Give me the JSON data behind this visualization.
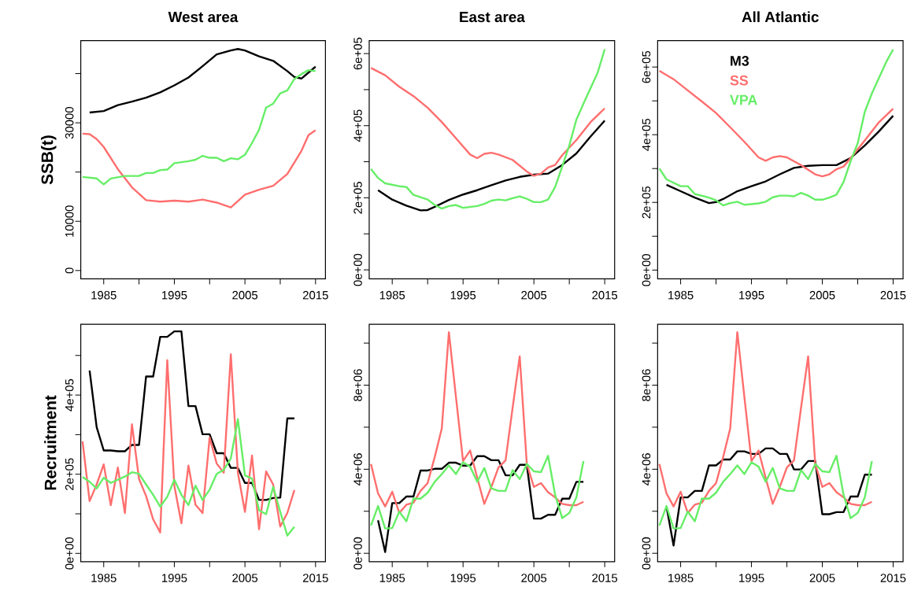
{
  "chart_data": [
    {
      "type": "line",
      "title": "West area",
      "ylabel": "SSB(t)",
      "xlim": [
        1981.75,
        2016.4
      ],
      "ylim": [
        -1700,
        46700
      ],
      "xticks": [
        1985,
        {
          "value": 1990,
          "label": null
        },
        1995,
        {
          "value": 2000,
          "label": null
        },
        2005,
        {
          "value": 2010,
          "label": null
        },
        2015
      ],
      "yticks": [
        0,
        10000,
        {
          "value": 20000,
          "label": null
        },
        30000,
        {
          "value": 40000,
          "label": null
        }
      ],
      "series": [
        {
          "color": "#000000",
          "x": [
            1983,
            1985,
            1987,
            1989,
            1991,
            1993,
            1995,
            1997,
            1999,
            2001,
            2003,
            2004,
            2005,
            2007,
            2009,
            2011,
            2012,
            2013,
            2014,
            2015
          ],
          "values": [
            32100,
            32400,
            33600,
            34300,
            35100,
            36200,
            37600,
            39200,
            41500,
            43900,
            44700,
            45000,
            44700,
            43500,
            42600,
            40500,
            39300,
            39000,
            40200,
            41400
          ]
        },
        {
          "color": "#ff6e6e",
          "x": [
            1982,
            1983,
            1984,
            1985,
            1987,
            1989,
            1991,
            1993,
            1995,
            1997,
            1999,
            2001,
            2003,
            2005,
            2007,
            2009,
            2011,
            2013,
            2014,
            2015
          ],
          "values": [
            27800,
            27700,
            26700,
            25100,
            20600,
            16900,
            14300,
            14000,
            14200,
            14000,
            14400,
            13800,
            12800,
            15400,
            16400,
            17200,
            19600,
            24300,
            27500,
            28500
          ]
        },
        {
          "color": "#66ee66",
          "x": [
            1982,
            1984,
            1985,
            1986,
            1988,
            1990,
            1991,
            1992,
            1993,
            1994,
            1995,
            1997,
            1998,
            1999,
            2000,
            2001,
            2002,
            2003,
            2004,
            2005,
            2006,
            2007,
            2008,
            2009,
            2010,
            2011,
            2012,
            2013,
            2014,
            2015
          ],
          "values": [
            19000,
            18700,
            17500,
            18700,
            19200,
            19200,
            19800,
            19800,
            20400,
            20500,
            21800,
            22200,
            22500,
            23300,
            22900,
            22900,
            22200,
            22800,
            22600,
            23500,
            25900,
            28600,
            33100,
            33900,
            36000,
            36600,
            38900,
            39900,
            40700,
            40500
          ]
        }
      ]
    },
    {
      "type": "line",
      "title": "East area",
      "xlim": [
        1981.75,
        2016.4
      ],
      "ylim": [
        -25000,
        636000
      ],
      "xticks": [
        1985,
        {
          "value": 1990,
          "label": null
        },
        1995,
        {
          "value": 2000,
          "label": null
        },
        2005,
        {
          "value": 2010,
          "label": null
        },
        2015
      ],
      "yticks": [
        {
          "value": 0,
          "label": "0e+00"
        },
        {
          "value": 100000,
          "label": null
        },
        {
          "value": 200000,
          "label": "2e+05"
        },
        {
          "value": 300000,
          "label": null
        },
        {
          "value": 400000,
          "label": "4e+05"
        },
        {
          "value": 500000,
          "label": null
        },
        {
          "value": 600000,
          "label": "6e+05"
        }
      ],
      "series": [
        {
          "color": "#000000",
          "x": [
            1983,
            1985,
            1987,
            1989,
            1990,
            1991,
            1993,
            1995,
            1997,
            1999,
            2001,
            2003,
            2005,
            2007,
            2009,
            2011,
            2013,
            2015
          ],
          "values": [
            221000,
            195000,
            178000,
            165000,
            166000,
            175000,
            194000,
            209000,
            221000,
            235000,
            248000,
            258000,
            264000,
            267000,
            291000,
            323000,
            370000,
            414000
          ]
        },
        {
          "color": "#ff6e6e",
          "x": [
            1982,
            1984,
            1986,
            1988,
            1990,
            1992,
            1994,
            1996,
            1997,
            1998,
            1999,
            2000,
            2002,
            2004,
            2005,
            2006,
            2007,
            2008,
            2009,
            2011,
            2013,
            2015
          ],
          "values": [
            560000,
            540000,
            508000,
            482000,
            450000,
            410000,
            365000,
            320000,
            310000,
            322000,
            325000,
            320000,
            305000,
            273000,
            261000,
            267000,
            284000,
            291000,
            318000,
            360000,
            410000,
            448000
          ]
        },
        {
          "color": "#66ee66",
          "x": [
            1982,
            1983,
            1984,
            1986,
            1987,
            1988,
            1990,
            1991,
            1992,
            1993,
            1994,
            1995,
            1997,
            1998,
            1999,
            2000,
            2001,
            2002,
            2003,
            2004,
            2005,
            2006,
            2007,
            2008,
            2009,
            2010,
            2011,
            2012,
            2013,
            2014,
            2015
          ],
          "values": [
            280000,
            255000,
            240000,
            232000,
            230000,
            208000,
            195000,
            180000,
            170000,
            177000,
            180000,
            172000,
            177000,
            183000,
            192000,
            195000,
            193000,
            199000,
            204000,
            197000,
            188000,
            188000,
            195000,
            230000,
            287000,
            345000,
            417000,
            461000,
            504000,
            547000,
            612000
          ]
        }
      ]
    },
    {
      "type": "line",
      "title": "All Atlantic",
      "legend": "top left",
      "xlim": [
        1981.75,
        2016.4
      ],
      "ylim": [
        -26000,
        678000
      ],
      "xticks": [
        1985,
        {
          "value": 1990,
          "label": null
        },
        1995,
        {
          "value": 2000,
          "label": null
        },
        2005,
        {
          "value": 2010,
          "label": null
        },
        2015
      ],
      "yticks": [
        {
          "value": 0,
          "label": "0e+00"
        },
        {
          "value": 100000,
          "label": null
        },
        {
          "value": 200000,
          "label": "2e+05"
        },
        {
          "value": 300000,
          "label": null
        },
        {
          "value": 400000,
          "label": "4e+05"
        },
        {
          "value": 500000,
          "label": null
        },
        {
          "value": 600000,
          "label": "6e+05"
        }
      ],
      "series": [
        {
          "name": "M3",
          "color": "#000000",
          "x": [
            1983,
            1985,
            1987,
            1989,
            1990,
            1991,
            1993,
            1995,
            1997,
            1999,
            2001,
            2003,
            2005,
            2007,
            2009,
            2011,
            2013,
            2015
          ],
          "values": [
            252000,
            233000,
            214000,
            198000,
            201000,
            210000,
            233000,
            248000,
            262000,
            283000,
            302000,
            308000,
            310000,
            310000,
            331000,
            368000,
            410000,
            456000
          ]
        },
        {
          "name": "SS",
          "color": "#ff6e6e",
          "x": [
            1982,
            1984,
            1986,
            1988,
            1990,
            1992,
            1994,
            1996,
            1997,
            1998,
            1999,
            2000,
            2002,
            2004,
            2005,
            2006,
            2007,
            2008,
            2009,
            2011,
            2013,
            2015
          ],
          "values": [
            589000,
            564000,
            531000,
            498000,
            464000,
            422000,
            379000,
            333000,
            323000,
            333000,
            337000,
            333000,
            310000,
            283000,
            277000,
            283000,
            298000,
            306000,
            331000,
            383000,
            437000,
            477000
          ]
        },
        {
          "name": "VPA",
          "color": "#66ee66",
          "x": [
            1982,
            1983,
            1985,
            1986,
            1987,
            1989,
            1990,
            1991,
            1992,
            1993,
            1994,
            1996,
            1997,
            1998,
            1999,
            2000,
            2001,
            2002,
            2003,
            2004,
            2005,
            2006,
            2007,
            2008,
            2009,
            2010,
            2011,
            2012,
            2013,
            2014,
            2015
          ],
          "values": [
            300000,
            268000,
            248000,
            248000,
            225000,
            214000,
            206000,
            191000,
            198000,
            202000,
            193000,
            197000,
            202000,
            215000,
            220000,
            220000,
            218000,
            228000,
            220000,
            208000,
            208000,
            214000,
            223000,
            260000,
            322000,
            375000,
            468000,
            522000,
            568000,
            614000,
            652000
          ]
        }
      ]
    },
    {
      "type": "line",
      "ylabel": "Recruitment",
      "xlim": [
        1981.75,
        2016.4
      ],
      "ylim": [
        -21000,
        579000
      ],
      "xticks": [
        1985,
        {
          "value": 1990,
          "label": null
        },
        1995,
        {
          "value": 2000,
          "label": null
        },
        2005,
        {
          "value": 2010,
          "label": null
        },
        2015
      ],
      "yticks": [
        {
          "value": 0,
          "label": "0e+00"
        },
        {
          "value": 100000,
          "label": null
        },
        {
          "value": 200000,
          "label": "2e+05"
        },
        {
          "value": 300000,
          "label": null
        },
        {
          "value": 400000,
          "label": "4e+05"
        },
        {
          "value": 500000,
          "label": null
        }
      ],
      "series": [
        {
          "color": "#000000",
          "x": [
            1983,
            1984,
            1985,
            1986,
            1987,
            1988,
            1989,
            1990,
            1991,
            1992,
            1993,
            1994,
            1995,
            1996,
            1997,
            1998,
            1999,
            2000,
            2001,
            2002,
            2003,
            2004,
            2005,
            2006,
            2007,
            2008,
            2009,
            2010,
            2011,
            2012
          ],
          "values": [
            462000,
            319000,
            260000,
            260000,
            258000,
            258000,
            274000,
            274000,
            447000,
            447000,
            547000,
            547000,
            561000,
            561000,
            372000,
            372000,
            301000,
            301000,
            253000,
            253000,
            216000,
            216000,
            178000,
            178000,
            135000,
            135000,
            140000,
            141000,
            341000,
            341000
          ]
        },
        {
          "color": "#ff6e6e",
          "x": [
            1982,
            1983,
            1984,
            1985,
            1986,
            1987,
            1988,
            1989,
            1990,
            1991,
            1992,
            1993,
            1994,
            1995,
            1996,
            1997,
            1998,
            1999,
            2000,
            2001,
            2002,
            2003,
            2004,
            2005,
            2006,
            2007,
            2008,
            2009,
            2010,
            2011,
            2012
          ],
          "values": [
            283000,
            132000,
            174000,
            225000,
            122000,
            217000,
            102000,
            326000,
            188000,
            145000,
            86000,
            53000,
            488000,
            171000,
            76000,
            222000,
            123000,
            102000,
            293000,
            227000,
            204000,
            503000,
            204000,
            105000,
            247000,
            61000,
            207000,
            174000,
            68000,
            102000,
            160000
          ]
        },
        {
          "color": "#66ee66",
          "x": [
            1982,
            1983,
            1984,
            1985,
            1986,
            1987,
            1988,
            1989,
            1990,
            1991,
            1992,
            1993,
            1994,
            1995,
            1996,
            1997,
            1998,
            1999,
            2000,
            2001,
            2002,
            2003,
            2004,
            2005,
            2006,
            2007,
            2008,
            2009,
            2010,
            2011,
            2012
          ],
          "values": [
            193000,
            181000,
            164000,
            191000,
            178000,
            186000,
            194000,
            205000,
            201000,
            174000,
            148000,
            118000,
            143000,
            186000,
            148000,
            122000,
            171000,
            135000,
            161000,
            201000,
            211000,
            240000,
            339000,
            197000,
            189000,
            109000,
            99000,
            168000,
            105000,
            45000,
            67000
          ]
        }
      ]
    },
    {
      "type": "line",
      "xlim": [
        1981.75,
        2016.4
      ],
      "ylim": [
        -400000,
        10900000
      ],
      "xticks": [
        1985,
        {
          "value": 1990,
          "label": null
        },
        1995,
        {
          "value": 2000,
          "label": null
        },
        2005,
        {
          "value": 2010,
          "label": null
        },
        2015
      ],
      "yticks": [
        {
          "value": 0,
          "label": "0e+00"
        },
        {
          "value": 2000000,
          "label": null
        },
        {
          "value": 4000000,
          "label": "4e+06"
        },
        {
          "value": 6000000,
          "label": null
        },
        {
          "value": 8000000,
          "label": "8e+06"
        },
        {
          "value": 10000000,
          "label": null
        }
      ],
      "series": [
        {
          "color": "#000000",
          "x": [
            1983,
            1984,
            1985,
            1986,
            1987,
            1988,
            1989,
            1990,
            1991,
            1992,
            1993,
            1994,
            1995,
            1996,
            1997,
            1998,
            1999,
            2000,
            2001,
            2002,
            2003,
            2004,
            2005,
            2006,
            2007,
            2008,
            2009,
            2010,
            2011,
            2012
          ],
          "values": [
            1570000,
            60000,
            2390000,
            2390000,
            2700000,
            2700000,
            3940000,
            3940000,
            4020000,
            4020000,
            4310000,
            4310000,
            4170000,
            4170000,
            4620000,
            4620000,
            4430000,
            4430000,
            3710000,
            3710000,
            4210000,
            4210000,
            1650000,
            1650000,
            1830000,
            1830000,
            2600000,
            2600000,
            3400000,
            3400000
          ]
        },
        {
          "color": "#ff6e6e",
          "x": [
            1982,
            1983,
            1984,
            1985,
            1986,
            1987,
            1988,
            1989,
            1990,
            1991,
            1992,
            1993,
            1994,
            1995,
            1996,
            1997,
            1998,
            1999,
            2000,
            2001,
            2002,
            2003,
            2004,
            2005,
            2006,
            2007,
            2008,
            2009,
            2010,
            2011,
            2012
          ],
          "values": [
            4250000,
            2850000,
            2230000,
            2930000,
            1920000,
            2310000,
            2410000,
            2970000,
            3340000,
            4580000,
            5940000,
            10520000,
            7430000,
            4390000,
            4890000,
            3590000,
            2350000,
            3160000,
            4080000,
            4420000,
            6930000,
            9370000,
            4250000,
            3160000,
            3340000,
            2910000,
            2660000,
            2350000,
            2290000,
            2290000,
            2450000
          ]
        },
        {
          "color": "#66ee66",
          "x": [
            1982,
            1983,
            1984,
            1985,
            1986,
            1987,
            1988,
            1989,
            1990,
            1991,
            1992,
            1993,
            1994,
            1995,
            1996,
            1997,
            1998,
            1999,
            2000,
            2001,
            2002,
            2003,
            2004,
            2005,
            2006,
            2007,
            2008,
            2009,
            2010,
            2011,
            2012
          ],
          "values": [
            1320000,
            2250000,
            1180000,
            1200000,
            1980000,
            1520000,
            2600000,
            2600000,
            2880000,
            3400000,
            3770000,
            4180000,
            3770000,
            4330000,
            4120000,
            3400000,
            4060000,
            3090000,
            2970000,
            2970000,
            3960000,
            3530000,
            4250000,
            3900000,
            3860000,
            4640000,
            2780000,
            1670000,
            1920000,
            2660000,
            4390000
          ]
        }
      ]
    },
    {
      "type": "line",
      "xlim": [
        1981.75,
        2016.4
      ],
      "ylim": [
        -400000,
        10900000
      ],
      "xticks": [
        1985,
        {
          "value": 1990,
          "label": null
        },
        1995,
        {
          "value": 2000,
          "label": null
        },
        2005,
        {
          "value": 2010,
          "label": null
        },
        2015
      ],
      "yticks": [
        {
          "value": 0,
          "label": "0e+00"
        },
        {
          "value": 2000000,
          "label": null
        },
        {
          "value": 4000000,
          "label": "4e+06"
        },
        {
          "value": 6000000,
          "label": null
        },
        {
          "value": 8000000,
          "label": "8e+06"
        },
        {
          "value": 10000000,
          "label": null
        }
      ],
      "series": [
        {
          "color": "#000000",
          "x": [
            1983,
            1984,
            1985,
            1986,
            1987,
            1988,
            1989,
            1990,
            1991,
            1992,
            1993,
            1994,
            1995,
            1996,
            1997,
            1998,
            1999,
            2000,
            2001,
            2002,
            2003,
            2004,
            2005,
            2006,
            2007,
            2008,
            2009,
            2010,
            2011,
            2012
          ],
          "values": [
            2230000,
            370000,
            2660000,
            2660000,
            2970000,
            2970000,
            4180000,
            4180000,
            4460000,
            4460000,
            4850000,
            4850000,
            4730000,
            4730000,
            4990000,
            4990000,
            4730000,
            4730000,
            3990000,
            3990000,
            4390000,
            4390000,
            1860000,
            1860000,
            1960000,
            1960000,
            2700000,
            2700000,
            3740000,
            3740000
          ]
        },
        {
          "color": "#ff6e6e",
          "x": [
            1982,
            1983,
            1984,
            1985,
            1986,
            1987,
            1988,
            1989,
            1990,
            1991,
            1992,
            1993,
            1994,
            1995,
            1996,
            1997,
            1998,
            1999,
            2000,
            2001,
            2002,
            2003,
            2004,
            2005,
            2006,
            2007,
            2008,
            2009,
            2010,
            2011,
            2012
          ],
          "values": [
            4250000,
            2850000,
            2230000,
            2930000,
            1920000,
            2310000,
            2410000,
            2970000,
            3340000,
            4580000,
            5940000,
            10520000,
            7430000,
            4390000,
            4890000,
            3590000,
            2350000,
            3160000,
            4080000,
            4420000,
            6930000,
            9370000,
            4250000,
            3160000,
            3340000,
            2910000,
            2660000,
            2350000,
            2290000,
            2290000,
            2450000
          ]
        },
        {
          "color": "#66ee66",
          "x": [
            1982,
            1983,
            1984,
            1985,
            1986,
            1987,
            1988,
            1989,
            1990,
            1991,
            1992,
            1993,
            1994,
            1995,
            1996,
            1997,
            1998,
            1999,
            2000,
            2001,
            2002,
            2003,
            2004,
            2005,
            2006,
            2007,
            2008,
            2009,
            2010,
            2011,
            2012
          ],
          "values": [
            1320000,
            2250000,
            1180000,
            1200000,
            1980000,
            1520000,
            2600000,
            2600000,
            2880000,
            3400000,
            3770000,
            4180000,
            3770000,
            4330000,
            4120000,
            3400000,
            4060000,
            3090000,
            2970000,
            2970000,
            3960000,
            3530000,
            4250000,
            3900000,
            3860000,
            4640000,
            2780000,
            1670000,
            1920000,
            2660000,
            4390000
          ]
        }
      ]
    }
  ]
}
